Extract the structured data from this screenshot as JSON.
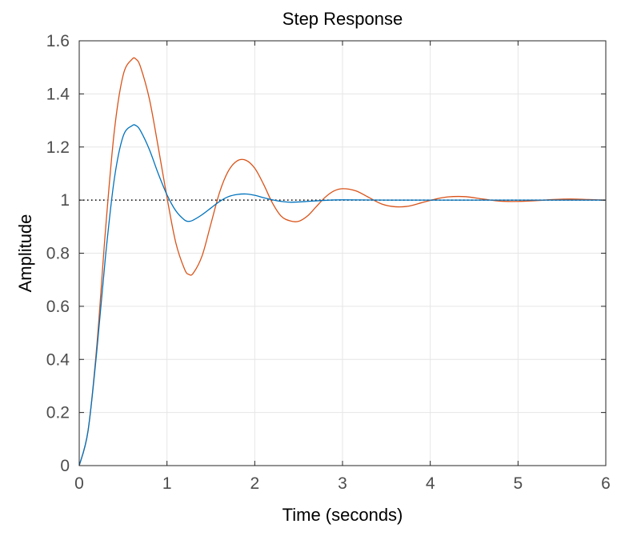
{
  "chart_data": {
    "type": "line",
    "title": "Step Response",
    "xlabel": "Time (seconds)",
    "ylabel": "Amplitude",
    "xlim": [
      0,
      6
    ],
    "ylim": [
      0,
      1.6
    ],
    "xticks": [
      0,
      1,
      2,
      3,
      4,
      5,
      6
    ],
    "xtick_labels": [
      "0",
      "1",
      "2",
      "3",
      "4",
      "5",
      "6"
    ],
    "yticks": [
      0,
      0.2,
      0.4,
      0.6,
      0.8,
      1,
      1.2,
      1.4,
      1.6
    ],
    "ytick_labels": [
      "0",
      "0.2",
      "0.4",
      "0.6",
      "0.8",
      "1",
      "1.2",
      "1.4",
      "1.6"
    ],
    "grid": true,
    "reference_line": {
      "y": 1,
      "style": "dotted",
      "color": "#000000"
    },
    "colors": {
      "series1": "#0072BD",
      "series2": "#D95319",
      "grid": "#e6e6e6",
      "axis": "#262626"
    },
    "series": [
      {
        "color": "#0072BD",
        "x": [
          0,
          0.1,
          0.2,
          0.3,
          0.4,
          0.5,
          0.6,
          0.65,
          0.7,
          0.8,
          0.9,
          1.0,
          1.1,
          1.2,
          1.25,
          1.3,
          1.4,
          1.5,
          1.6,
          1.7,
          1.8,
          1.9,
          2.0,
          2.1,
          2.2,
          2.3,
          2.4,
          2.5,
          2.6,
          2.8,
          3.0,
          3.5,
          4.0,
          5.0,
          6.0
        ],
        "y": [
          0,
          0.13,
          0.43,
          0.79,
          1.08,
          1.24,
          1.28,
          1.28,
          1.26,
          1.19,
          1.1,
          1.02,
          0.96,
          0.925,
          0.92,
          0.925,
          0.945,
          0.97,
          0.995,
          1.013,
          1.021,
          1.023,
          1.018,
          1.009,
          1.001,
          0.995,
          0.992,
          0.993,
          0.995,
          0.999,
          1.001,
          1.0,
          1.0,
          1.0,
          1.0
        ]
      },
      {
        "color": "#D95319",
        "x": [
          0,
          0.1,
          0.2,
          0.3,
          0.4,
          0.5,
          0.6,
          0.65,
          0.7,
          0.8,
          0.9,
          1.0,
          1.1,
          1.2,
          1.25,
          1.3,
          1.4,
          1.5,
          1.6,
          1.7,
          1.8,
          1.9,
          2.0,
          2.1,
          2.2,
          2.3,
          2.4,
          2.5,
          2.6,
          2.7,
          2.8,
          2.9,
          3.0,
          3.15,
          3.3,
          3.45,
          3.6,
          3.75,
          3.9,
          4.05,
          4.2,
          4.4,
          4.6,
          4.8,
          5.0,
          5.2,
          5.4,
          5.6,
          5.8,
          6.0
        ],
        "y": [
          0,
          0.13,
          0.45,
          0.89,
          1.26,
          1.47,
          1.53,
          1.53,
          1.5,
          1.38,
          1.2,
          1.01,
          0.84,
          0.74,
          0.72,
          0.725,
          0.79,
          0.91,
          1.03,
          1.11,
          1.148,
          1.15,
          1.12,
          1.06,
          0.99,
          0.94,
          0.922,
          0.92,
          0.94,
          0.975,
          1.01,
          1.034,
          1.043,
          1.035,
          1.01,
          0.985,
          0.975,
          0.977,
          0.99,
          1.003,
          1.012,
          1.013,
          1.004,
          0.996,
          0.995,
          0.998,
          1.002,
          1.004,
          1.002,
          1.0
        ]
      }
    ]
  }
}
